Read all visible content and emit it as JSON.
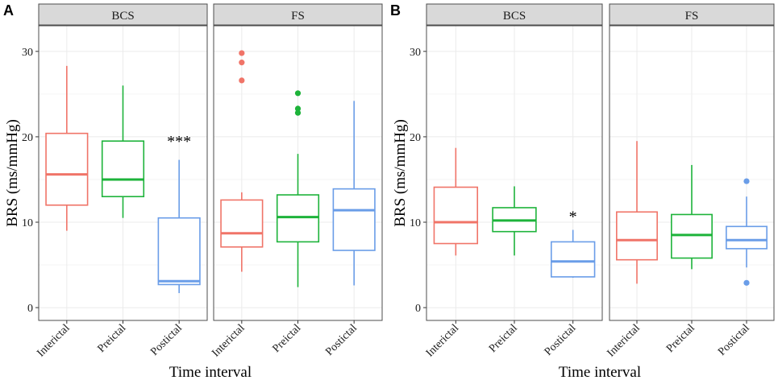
{
  "colors": {
    "Interictal": "#F07468",
    "Preictal": "#1DB33A",
    "Postictal": "#6A9DE8",
    "strip_bg": "#D9D9D9",
    "strip_border": "#4d4d4d",
    "grid": "#EBEBEB",
    "panel_border": "#4d4d4d"
  },
  "chart_data": [
    {
      "type": "box",
      "panel_label": "A",
      "ylabel": "BRS (ms/mmHg)",
      "xlabel": "Time interval",
      "ylim": [
        -1.5,
        33
      ],
      "yticks": [
        0,
        10,
        20,
        30
      ],
      "grid": true,
      "facets": [
        {
          "strip": "BCS",
          "categories": [
            "Interictal",
            "Preictal",
            "Postictal"
          ],
          "boxes": [
            {
              "category": "Interictal",
              "min": 9.0,
              "q1": 12.0,
              "median": 15.6,
              "q3": 20.4,
              "max": 28.3,
              "outliers": []
            },
            {
              "category": "Preictal",
              "min": 10.5,
              "q1": 13.0,
              "median": 15.0,
              "q3": 19.5,
              "max": 26.0,
              "outliers": []
            },
            {
              "category": "Postictal",
              "min": 1.7,
              "q1": 2.7,
              "median": 3.1,
              "q3": 10.5,
              "max": 17.3,
              "outliers": []
            }
          ],
          "annotations": [
            {
              "category": "Postictal",
              "y": 19.7,
              "text": "***"
            }
          ]
        },
        {
          "strip": "FS",
          "categories": [
            "Interictal",
            "Preictal",
            "Postictal"
          ],
          "boxes": [
            {
              "category": "Interictal",
              "min": 4.2,
              "q1": 7.1,
              "median": 8.7,
              "q3": 12.6,
              "max": 13.5,
              "outliers": [
                26.6,
                28.7,
                29.8
              ]
            },
            {
              "category": "Preictal",
              "min": 2.4,
              "q1": 7.7,
              "median": 10.6,
              "q3": 13.2,
              "max": 18.0,
              "outliers": [
                22.8,
                23.3,
                25.1
              ]
            },
            {
              "category": "Postictal",
              "min": 2.6,
              "q1": 6.7,
              "median": 11.4,
              "q3": 13.9,
              "max": 24.2,
              "outliers": []
            }
          ],
          "annotations": []
        }
      ]
    },
    {
      "type": "box",
      "panel_label": "B",
      "ylabel": "BRS (ms/mmHg)",
      "xlabel": "Time interval",
      "ylim": [
        -1.5,
        33
      ],
      "yticks": [
        0,
        10,
        20,
        30
      ],
      "grid": true,
      "facets": [
        {
          "strip": "BCS",
          "categories": [
            "Interictal",
            "Preictal",
            "Postictal"
          ],
          "boxes": [
            {
              "category": "Interictal",
              "min": 6.1,
              "q1": 7.5,
              "median": 10.0,
              "q3": 14.1,
              "max": 18.7,
              "outliers": []
            },
            {
              "category": "Preictal",
              "min": 6.1,
              "q1": 8.9,
              "median": 10.2,
              "q3": 11.7,
              "max": 14.2,
              "outliers": []
            },
            {
              "category": "Postictal",
              "min": 3.5,
              "q1": 3.6,
              "median": 5.4,
              "q3": 7.7,
              "max": 9.1,
              "outliers": []
            }
          ],
          "annotations": [
            {
              "category": "Postictal",
              "y": 10.9,
              "text": "*"
            }
          ]
        },
        {
          "strip": "FS",
          "categories": [
            "Interictal",
            "Preictal",
            "Postictal"
          ],
          "boxes": [
            {
              "category": "Interictal",
              "min": 2.8,
              "q1": 5.6,
              "median": 7.9,
              "q3": 11.2,
              "max": 19.5,
              "outliers": []
            },
            {
              "category": "Preictal",
              "min": 4.5,
              "q1": 5.8,
              "median": 8.5,
              "q3": 10.9,
              "max": 16.7,
              "outliers": []
            },
            {
              "category": "Postictal",
              "min": 4.7,
              "q1": 6.9,
              "median": 7.9,
              "q3": 9.5,
              "max": 13.0,
              "outliers": [
                2.9,
                14.8
              ]
            }
          ],
          "annotations": []
        }
      ]
    }
  ]
}
